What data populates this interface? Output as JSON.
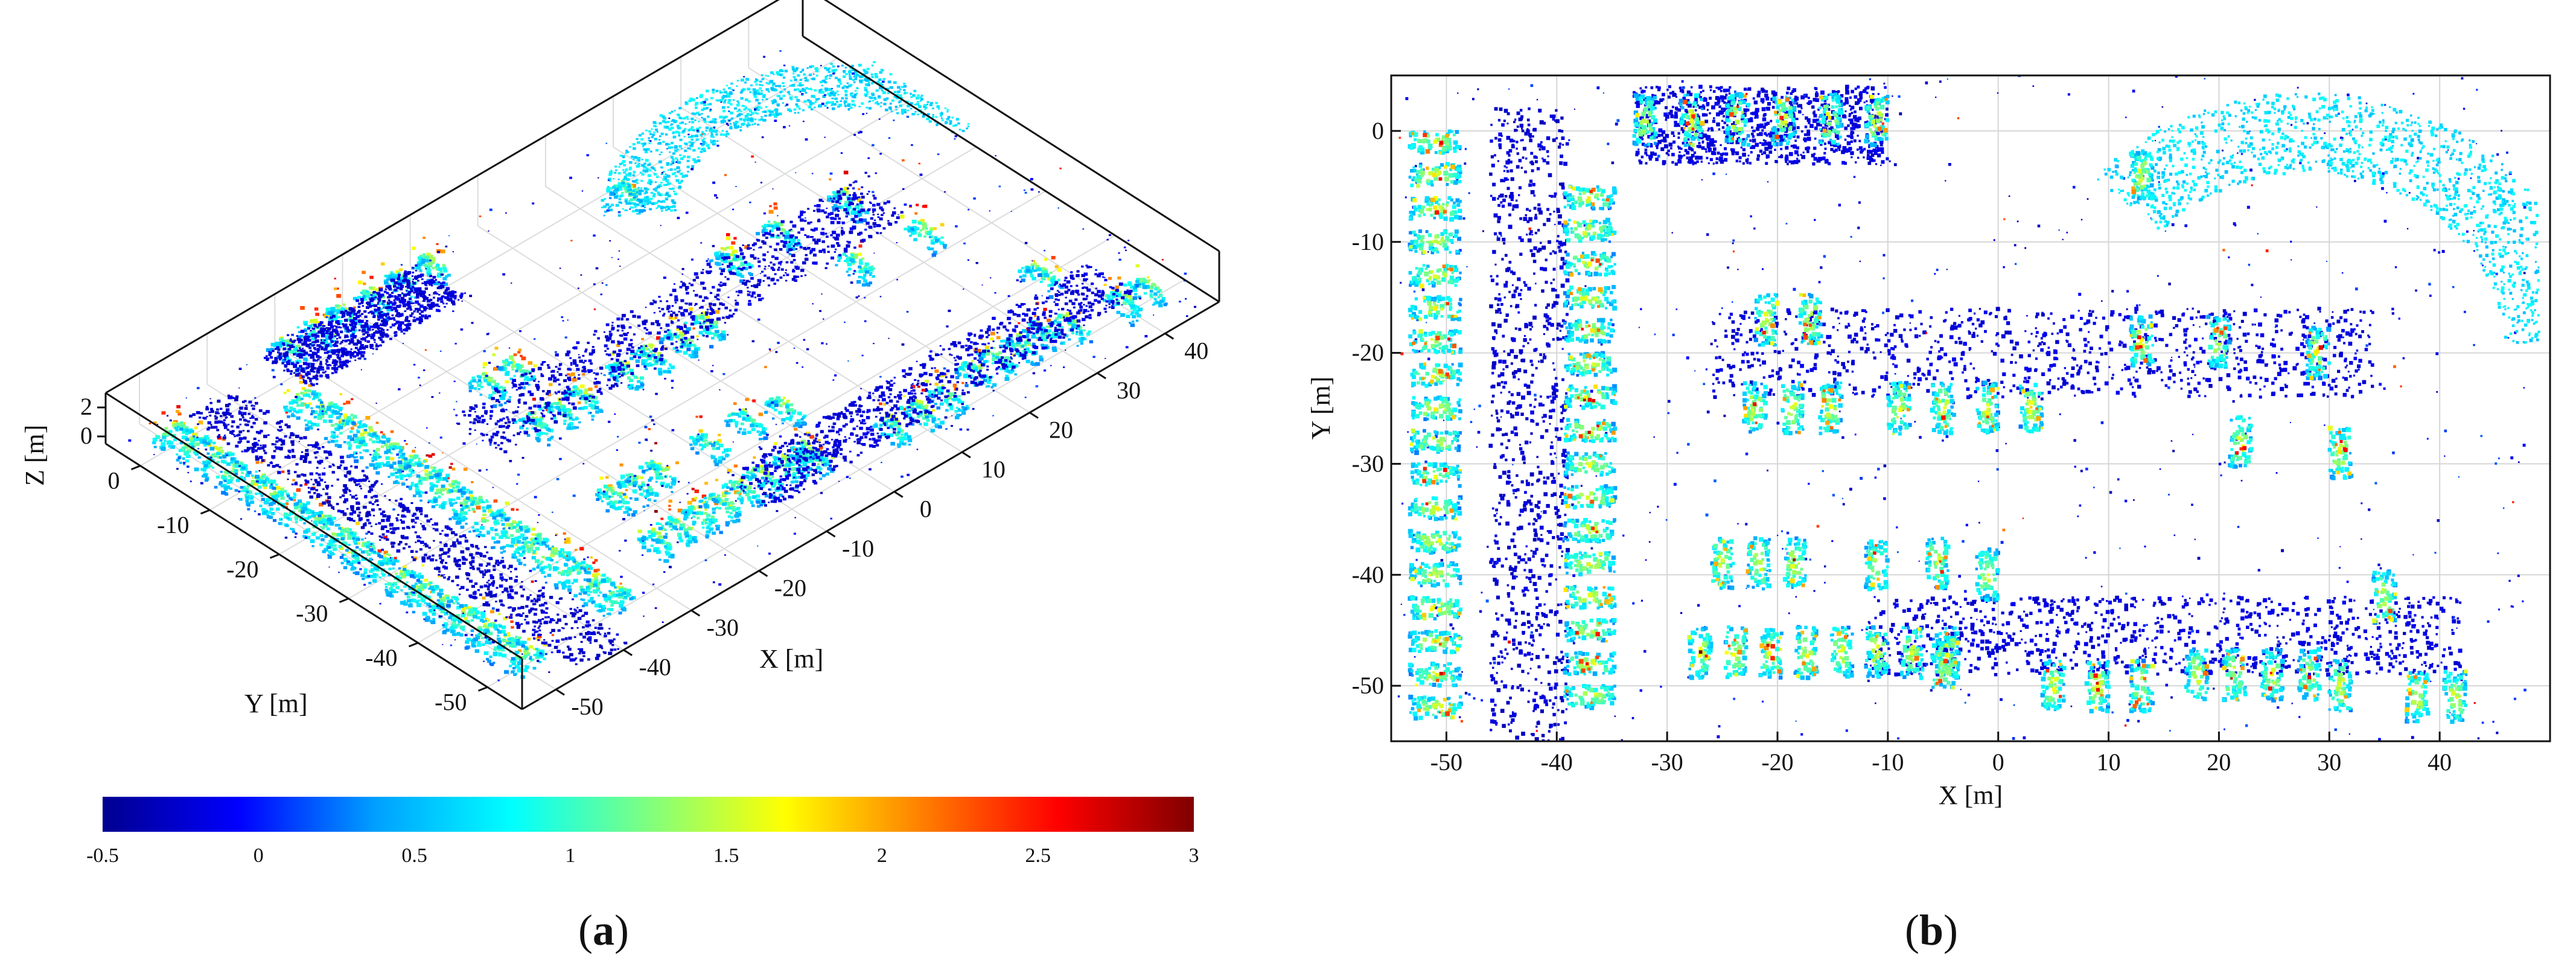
{
  "chart_data": [
    {
      "type": "scatter",
      "view": "3d-perspective",
      "panel_label": {
        "open": "(",
        "letter": "a",
        "close": ")"
      },
      "xlabel": "X [m]",
      "ylabel": "Y [m]",
      "zlabel": "Z [m]",
      "x_ticks": [
        -50,
        -40,
        -30,
        -20,
        -10,
        0,
        10,
        20,
        30,
        40
      ],
      "y_ticks": [
        0,
        -10,
        -20,
        -30,
        -40,
        -50
      ],
      "z_ticks": [
        0,
        2
      ],
      "xlim": [
        -55,
        48
      ],
      "ylim": [
        -55,
        5
      ],
      "zlim": [
        -0.5,
        3
      ],
      "grid": true,
      "colormap": "jet"
    },
    {
      "type": "scatter",
      "view": "top-down",
      "panel_label": {
        "open": "(",
        "letter": "b",
        "close": ")"
      },
      "xlabel": "X [m]",
      "ylabel": "Y [m]",
      "x_ticks": [
        -50,
        -40,
        -30,
        -20,
        -10,
        0,
        10,
        20,
        30,
        40
      ],
      "y_ticks": [
        0,
        -10,
        -20,
        -30,
        -40,
        -50
      ],
      "xlim": [
        -55,
        50
      ],
      "ylim": [
        -55,
        5
      ],
      "grid": true,
      "colormap": "jet"
    }
  ],
  "colorbar": {
    "ticks": [
      "-0.5",
      "0",
      "0.5",
      "1",
      "1.5",
      "2",
      "2.5",
      "3"
    ],
    "min": -0.5,
    "max": 3,
    "stops": [
      "#00008f",
      "#0000ff",
      "#00a0ff",
      "#00ffff",
      "#7fff7f",
      "#ffff00",
      "#ff8000",
      "#ff0000",
      "#800000"
    ]
  },
  "point_cloud": {
    "road_strips": [
      {
        "x0": -46,
        "y0": 2,
        "x1": -39,
        "y1": -55,
        "z": -0.35
      },
      {
        "x0": -33,
        "y0": 4,
        "x1": -10,
        "y1": -3,
        "z": -0.3
      },
      {
        "x0": -26,
        "y0": -16,
        "x1": 34,
        "y1": -24,
        "z": -0.3
      },
      {
        "x0": -12,
        "y0": -42,
        "x1": 42,
        "y1": -49,
        "z": -0.3
      }
    ],
    "car_rows": [
      {
        "x0": -51,
        "y0": -1,
        "dx": 0,
        "dy": -3.0,
        "n": 18,
        "orient": "h"
      },
      {
        "x0": -37,
        "y0": -6,
        "dx": 0,
        "dy": -3.0,
        "n": 16,
        "orient": "h"
      },
      {
        "x0": -32,
        "y0": 1,
        "dx": 4.2,
        "dy": 0,
        "n": 6,
        "orient": "v"
      },
      {
        "x0": -21,
        "y0": -17,
        "dx": 0,
        "dy": 0,
        "n": 1,
        "orient": "v"
      },
      {
        "x0": -17,
        "y0": -17,
        "dx": 0,
        "dy": 0,
        "n": 1,
        "orient": "v"
      },
      {
        "x0": -22,
        "y0": -25,
        "dx": 3.4,
        "dy": 0,
        "n": 3,
        "orient": "v"
      },
      {
        "x0": -9,
        "y0": -25,
        "dx": 4.0,
        "dy": 0,
        "n": 4,
        "orient": "v"
      },
      {
        "x0": -25,
        "y0": -39,
        "dx": 3.3,
        "dy": 0,
        "n": 3,
        "orient": "v"
      },
      {
        "x0": -11,
        "y0": -39,
        "dx": 5.5,
        "dy": 0,
        "n": 2,
        "orient": "v"
      },
      {
        "x0": -27,
        "y0": -47,
        "dx": 3.2,
        "dy": 0,
        "n": 8,
        "orient": "v"
      },
      {
        "x0": -5,
        "y0": -48,
        "dx": 0,
        "dy": 0,
        "n": 1,
        "orient": "v"
      },
      {
        "x0": 5,
        "y0": -50,
        "dx": 4.0,
        "dy": 0,
        "n": 3,
        "orient": "v"
      },
      {
        "x0": 18,
        "y0": -49,
        "dx": 3.4,
        "dy": 0,
        "n": 4,
        "orient": "v"
      },
      {
        "x0": 31,
        "y0": -50,
        "dx": 3.2,
        "dy": 0,
        "n": 1,
        "orient": "v"
      },
      {
        "x0": 38,
        "y0": -51,
        "dx": 3.4,
        "dy": 0,
        "n": 2,
        "orient": "v"
      },
      {
        "x0": 13,
        "y0": -4,
        "dx": 0,
        "dy": 0,
        "n": 1,
        "orient": "v"
      },
      {
        "x0": 13,
        "y0": -19,
        "dx": 0,
        "dy": 0,
        "n": 1,
        "orient": "v"
      },
      {
        "x0": 20,
        "y0": -19,
        "dx": 0,
        "dy": 0,
        "n": 1,
        "orient": "v"
      },
      {
        "x0": 29,
        "y0": -20,
        "dx": 0,
        "dy": 0,
        "n": 1,
        "orient": "v"
      },
      {
        "x0": 22,
        "y0": -28,
        "dx": 0,
        "dy": 0,
        "n": 1,
        "orient": "v"
      },
      {
        "x0": 31,
        "y0": -29,
        "dx": 0,
        "dy": 0,
        "n": 1,
        "orient": "v"
      },
      {
        "x0": 35,
        "y0": -42,
        "dx": 0,
        "dy": 0,
        "n": 1,
        "orient": "v"
      },
      {
        "x0": -1,
        "y0": -40,
        "dx": 0,
        "dy": 0,
        "n": 1,
        "orient": "v"
      }
    ],
    "arc": {
      "cx": 28,
      "cy": -20,
      "r0": 18,
      "r1": 26,
      "a0": 0.05,
      "a1": 2.4
    }
  }
}
